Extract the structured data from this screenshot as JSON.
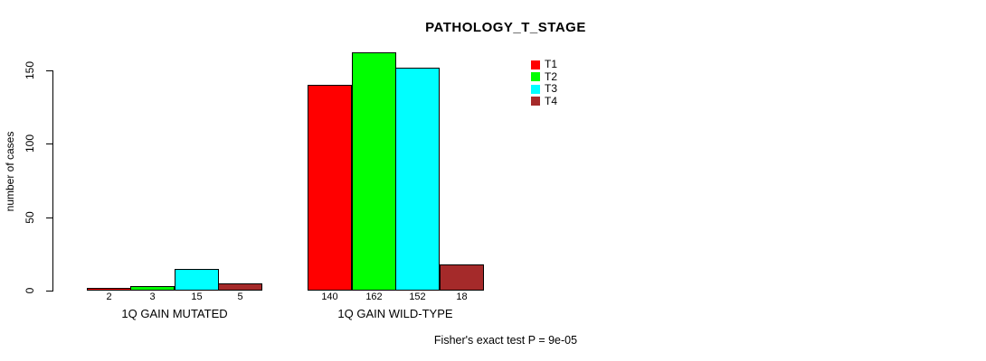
{
  "title": "PATHOLOGY_T_STAGE",
  "y_axis": {
    "label": "number of cases",
    "ticks": [
      "0",
      "50",
      "100",
      "150"
    ]
  },
  "footer": "Fisher's exact test P = 9e-05",
  "legend": {
    "entries": [
      {
        "label": "T1",
        "color": "#FF0000"
      },
      {
        "label": "T2",
        "color": "#00FF00"
      },
      {
        "label": "T3",
        "color": "#00FFFF"
      },
      {
        "label": "T4",
        "color": "#A52A2A"
      }
    ]
  },
  "chart_data": {
    "type": "bar",
    "title": "PATHOLOGY_T_STAGE",
    "xlabel": "",
    "ylabel": "number of cases",
    "categories": [
      "1Q GAIN MUTATED",
      "1Q GAIN WILD-TYPE"
    ],
    "series": [
      {
        "name": "T1",
        "color": "#FF0000",
        "values": [
          2,
          140
        ]
      },
      {
        "name": "T2",
        "color": "#00FF00",
        "values": [
          3,
          162
        ]
      },
      {
        "name": "T3",
        "color": "#00FFFF",
        "values": [
          15,
          152
        ]
      },
      {
        "name": "T4",
        "color": "#A52A2A",
        "values": [
          5,
          18
        ]
      }
    ],
    "bar_value_labels": [
      [
        "2",
        "3",
        "15",
        "5"
      ],
      [
        "140",
        "162",
        "152",
        "18"
      ]
    ],
    "yticks": [
      0,
      50,
      100,
      150
    ],
    "ylim": [
      0,
      162
    ],
    "grid": false,
    "legend_position": "top-right",
    "annotation": "Fisher's exact test P = 9e-05"
  }
}
